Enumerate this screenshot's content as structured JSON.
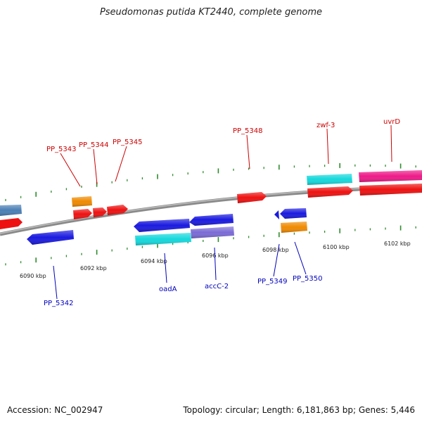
{
  "title": "Pseudomonas putida KT2440, complete genome",
  "footer": {
    "accession": "Accession: NC_002947",
    "summary": "Topology: circular; Length: 6,181,863 bp; Genes: 5,446"
  },
  "colors": {
    "backbone": "#8a8a8a",
    "tick": "#2e8b2e",
    "label_forward": "#cc0000",
    "label_reverse": "#0000bb",
    "cds_red": "#ee1111",
    "cds_blue": "#1a1ae0",
    "cds_cyan": "#15d8dc",
    "cds_purple": "#7b6bd6",
    "cds_orange": "#f08a00",
    "cds_pink": "#ee1a88",
    "cds_steel": "#4a7fb5"
  },
  "scale_labels": [
    "6090 kbp",
    "6092 kbp",
    "6094 kbp",
    "6096 kbp",
    "6098 kbp",
    "6100 kbp",
    "6102 kbp"
  ],
  "gene_labels": {
    "forward": [
      "PP_5343",
      "PP_5344",
      "PP_5345",
      "PP_5348",
      "zwf-3",
      "uvrD"
    ],
    "reverse": [
      "PP_5342",
      "oadA",
      "accC-2",
      "PP_5349",
      "PP_5350"
    ]
  }
}
